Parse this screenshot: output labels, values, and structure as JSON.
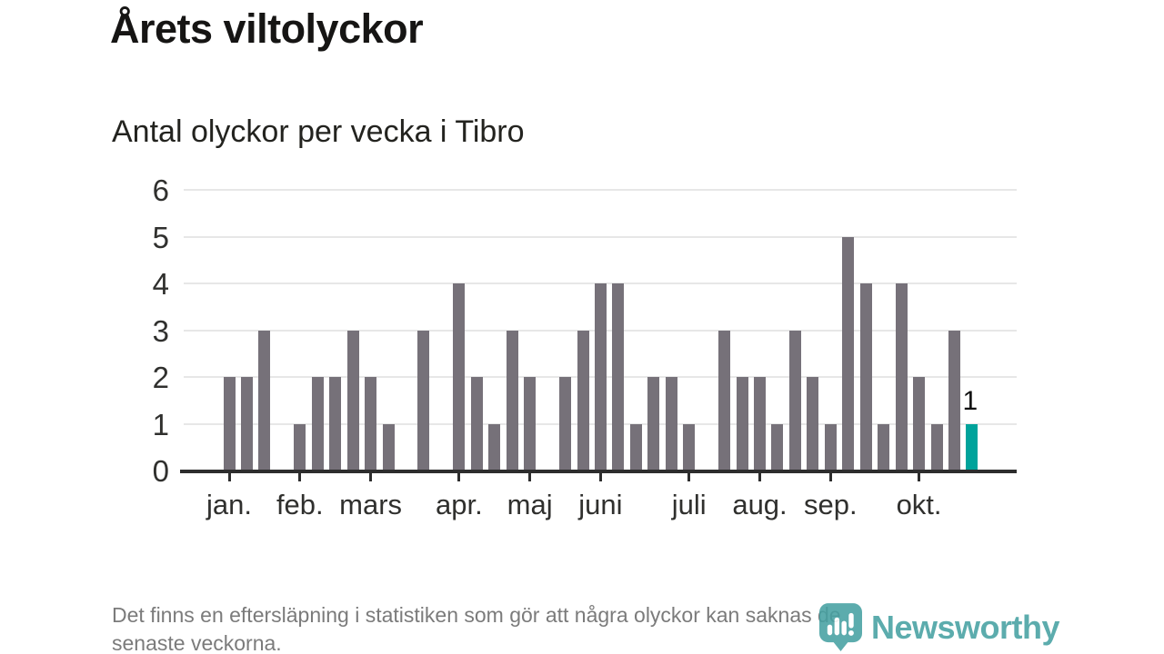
{
  "title": "Årets viltolyckor",
  "subtitle": "Antal olyckor per vecka i Tibro",
  "footnote_lines": [
    "Det finns en eftersläpning i statistiken som gör att några olyckor kan saknas de",
    "senaste veckorna."
  ],
  "logo": {
    "text": "Newsworthy",
    "icon": "newsworthy-pin-barchart-icon",
    "color": "#46a1a2"
  },
  "colors": {
    "bar_default": "#767179",
    "bar_highlight": "#00a39b",
    "gridline": "#e7e7e7",
    "axis": "#2d2d2d",
    "tick_label": "#30302e"
  },
  "chart_data": {
    "type": "bar",
    "title": "Årets viltolyckor",
    "subtitle": "Antal olyckor per vecka i Tibro",
    "x_unit": "week",
    "ylabel": "",
    "xlabel": "",
    "ylim": [
      0,
      6
    ],
    "grid": true,
    "y_ticks": [
      0,
      1,
      2,
      3,
      4,
      5,
      6
    ],
    "values": [
      2,
      2,
      3,
      0,
      1,
      2,
      2,
      3,
      2,
      1,
      0,
      3,
      0,
      4,
      2,
      1,
      3,
      2,
      0,
      2,
      3,
      4,
      4,
      1,
      2,
      2,
      1,
      0,
      3,
      2,
      2,
      1,
      3,
      2,
      1,
      5,
      4,
      1,
      4,
      2,
      1,
      3,
      1
    ],
    "month_ticks": [
      {
        "week_index": 0,
        "label": "jan."
      },
      {
        "week_index": 4,
        "label": "feb."
      },
      {
        "week_index": 8,
        "label": "mars"
      },
      {
        "week_index": 13,
        "label": "apr."
      },
      {
        "week_index": 17,
        "label": "maj"
      },
      {
        "week_index": 21,
        "label": "juni"
      },
      {
        "week_index": 26,
        "label": "juli"
      },
      {
        "week_index": 30,
        "label": "aug."
      },
      {
        "week_index": 34,
        "label": "sep."
      },
      {
        "week_index": 39,
        "label": "okt."
      }
    ],
    "highlight_index": 42,
    "highlight_value_label": "1"
  }
}
